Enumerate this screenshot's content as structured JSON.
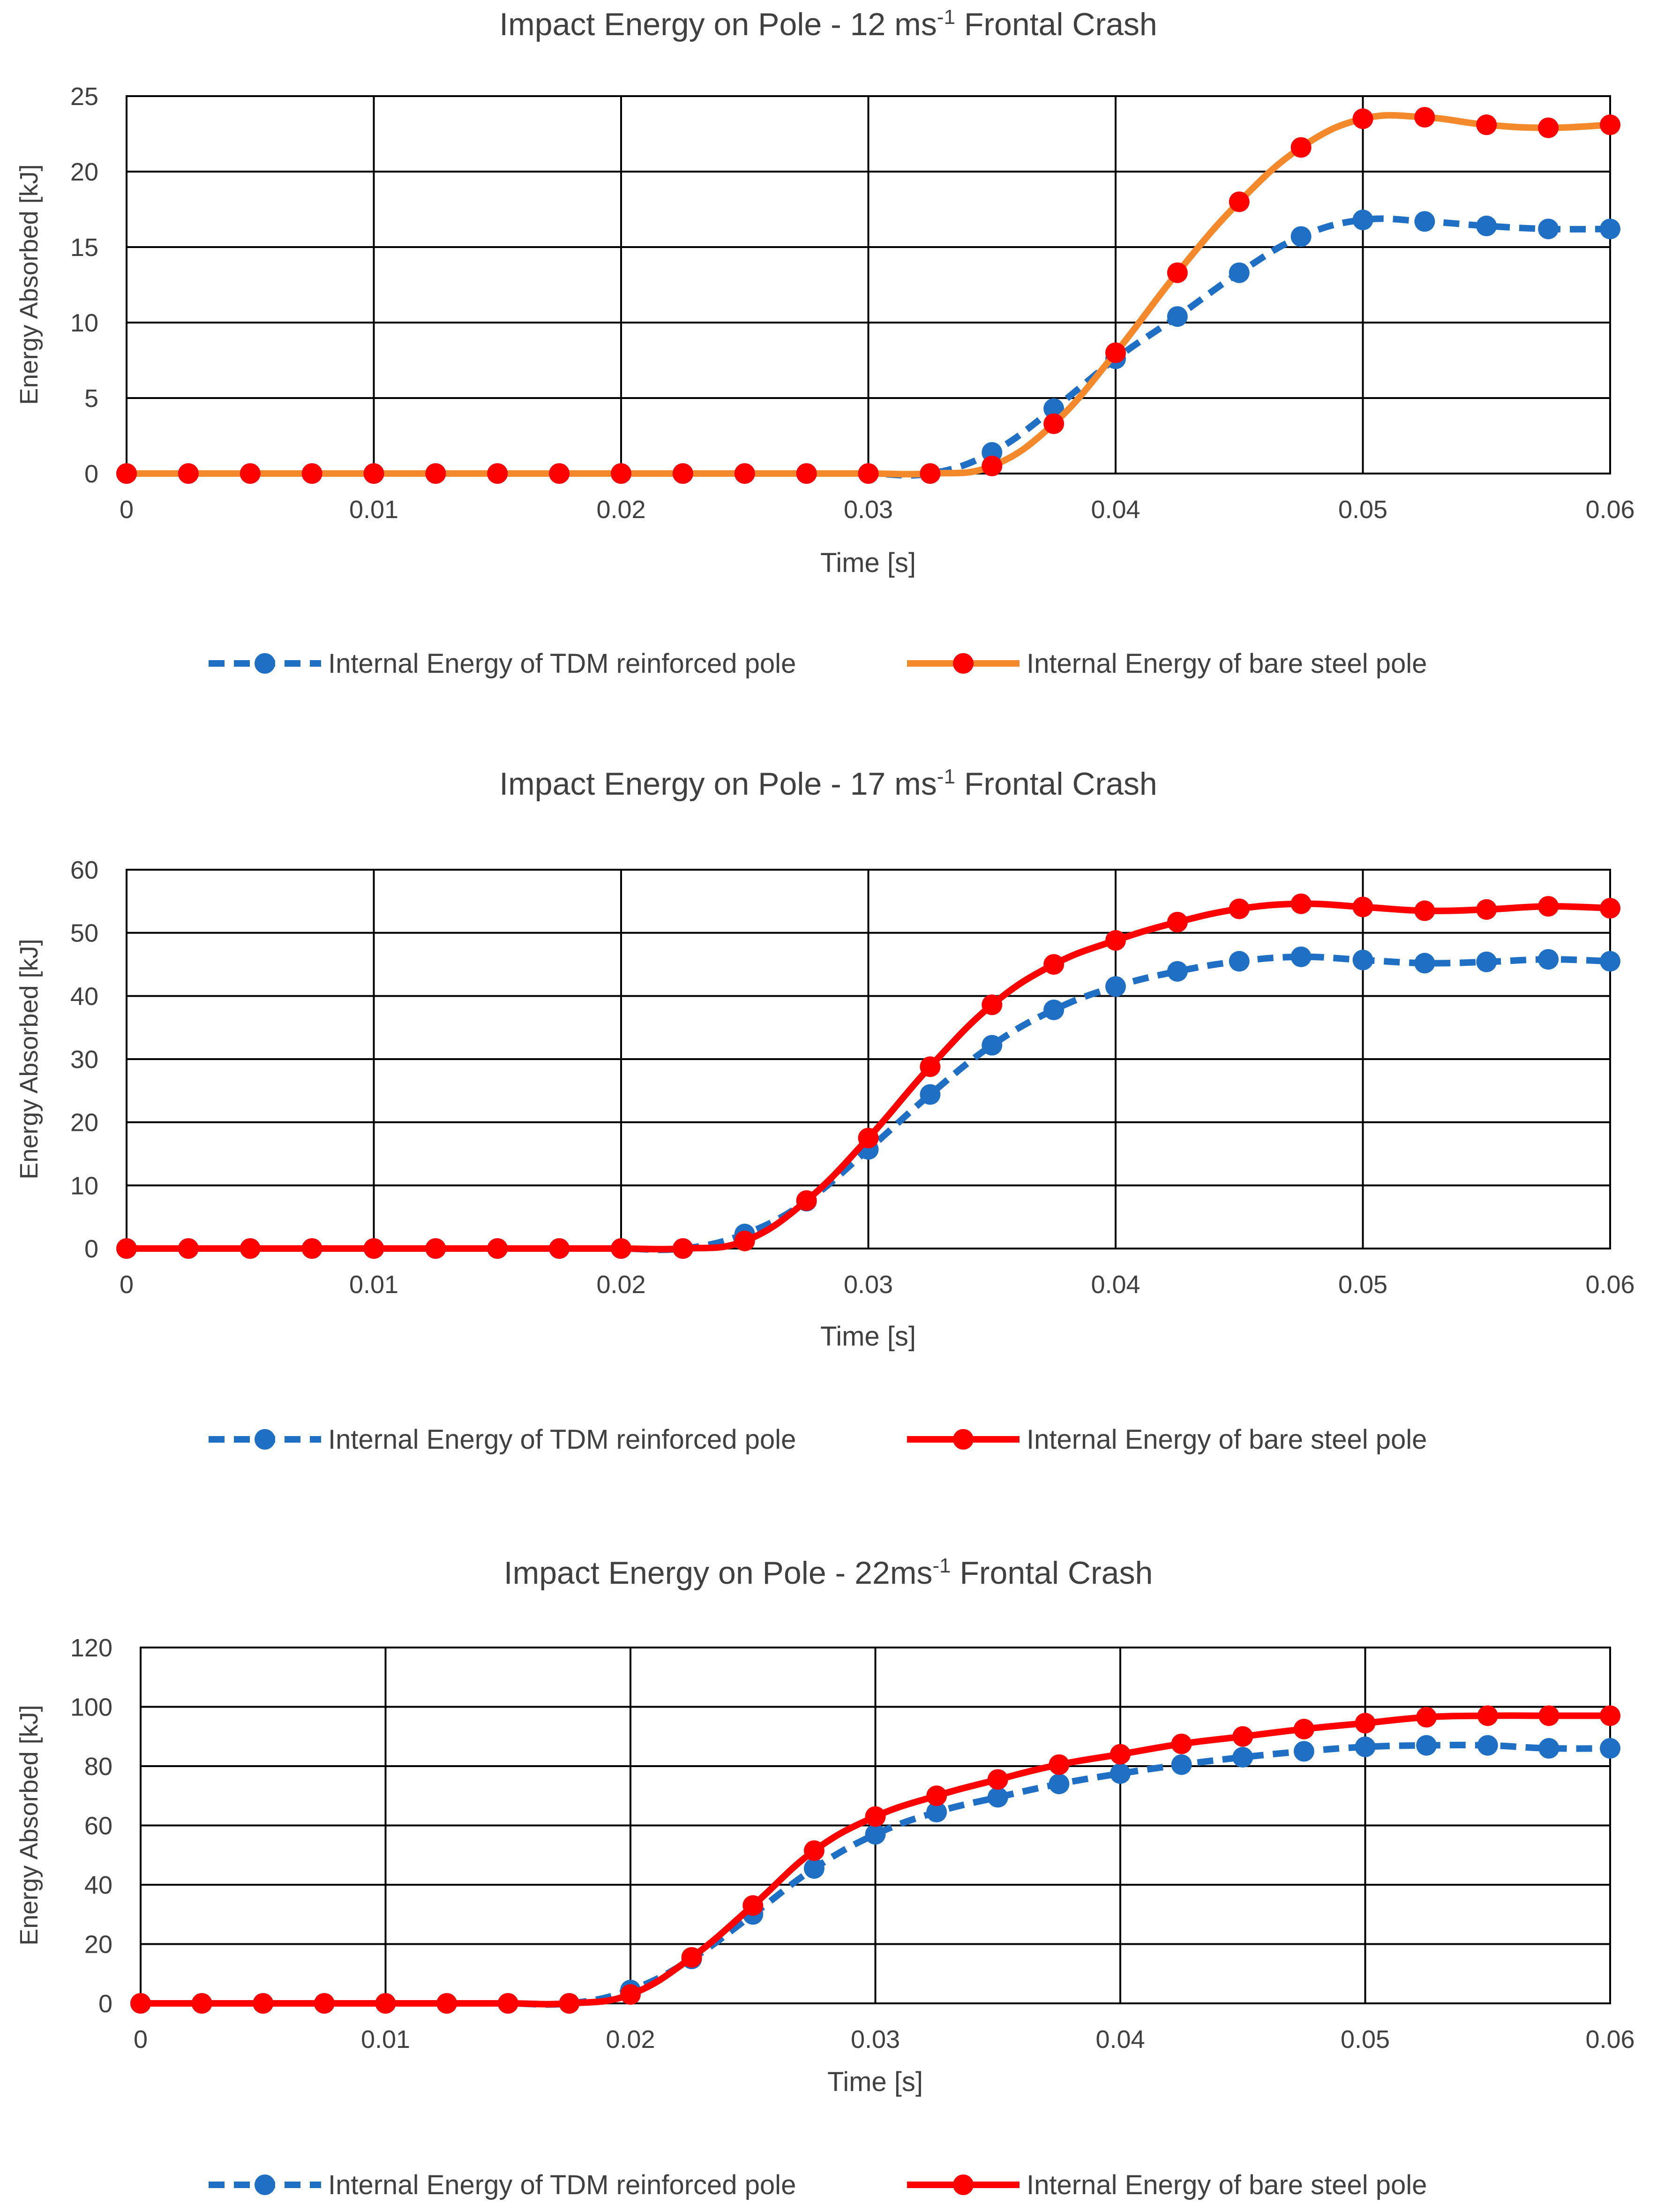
{
  "chart_data": [
    {
      "type": "line",
      "title_main": "Impact Energy on Pole - 12 ms",
      "title_sup": "-1",
      "title_end": " Frontal Crash",
      "xlabel": "Time [s]",
      "ylabel": "Energy Absorbed [kJ]",
      "xlim": [
        0,
        0.06
      ],
      "ylim": [
        0,
        25
      ],
      "grid": true,
      "x_ticks": [
        0,
        0.01,
        0.02,
        0.03,
        0.04,
        0.05,
        0.06
      ],
      "x_tick_labels": [
        "0",
        "0.01",
        "0.02",
        "0.03",
        "0.04",
        "0.05",
        "0.06"
      ],
      "y_ticks": [
        0,
        5,
        10,
        15,
        20,
        25
      ],
      "y_tick_labels": [
        "0",
        "5",
        "10",
        "15",
        "20",
        "25"
      ],
      "x": [
        0,
        0.0025,
        0.005,
        0.0075,
        0.01,
        0.0125,
        0.015,
        0.0175,
        0.02,
        0.0225,
        0.025,
        0.0275,
        0.03,
        0.0325,
        0.035,
        0.0375,
        0.04,
        0.0425,
        0.045,
        0.0475,
        0.05,
        0.0525,
        0.055,
        0.0575,
        0.06
      ],
      "legend_position": "bottom",
      "series": [
        {
          "name": "Internal Energy of TDM reinforced pole",
          "line_color": "#1F6FC5",
          "marker_color": "#1F6FC5",
          "dashed": true,
          "values": [
            0,
            0,
            0,
            0,
            0,
            0,
            0,
            0,
            0,
            0,
            0,
            0,
            0,
            0,
            1.4,
            4.3,
            7.6,
            10.4,
            13.3,
            15.7,
            16.8,
            16.7,
            16.4,
            16.2,
            16.2
          ]
        },
        {
          "name": "Internal Energy of bare steel pole",
          "line_color": "#F4892B",
          "marker_color": "#FF0000",
          "dashed": false,
          "values": [
            0,
            0,
            0,
            0,
            0,
            0,
            0,
            0,
            0,
            0,
            0,
            0,
            0,
            0,
            0.5,
            3.3,
            8.0,
            13.3,
            18.0,
            21.6,
            23.5,
            23.6,
            23.1,
            22.9,
            23.1
          ]
        }
      ]
    },
    {
      "type": "line",
      "title_main": "Impact Energy on Pole - 17 ms",
      "title_sup": "-1",
      "title_end": " Frontal Crash",
      "xlabel": "Time [s]",
      "ylabel": "Energy Absorbed [kJ]",
      "xlim": [
        0,
        0.06
      ],
      "ylim": [
        0,
        60
      ],
      "grid": true,
      "x_ticks": [
        0,
        0.01,
        0.02,
        0.03,
        0.04,
        0.05,
        0.06
      ],
      "x_tick_labels": [
        "0",
        "0.01",
        "0.02",
        "0.03",
        "0.04",
        "0.05",
        "0.06"
      ],
      "y_ticks": [
        0,
        10,
        20,
        30,
        40,
        50,
        60
      ],
      "y_tick_labels": [
        "0",
        "10",
        "20",
        "30",
        "40",
        "50",
        "60"
      ],
      "x": [
        0,
        0.0025,
        0.005,
        0.0075,
        0.01,
        0.0125,
        0.015,
        0.0175,
        0.02,
        0.0225,
        0.025,
        0.0275,
        0.03,
        0.0325,
        0.035,
        0.0375,
        0.04,
        0.0425,
        0.045,
        0.0475,
        0.05,
        0.0525,
        0.055,
        0.0575,
        0.06
      ],
      "legend_position": "bottom",
      "series": [
        {
          "name": "Internal Energy of TDM reinforced pole",
          "line_color": "#1F6FC5",
          "marker_color": "#1F6FC5",
          "dashed": true,
          "values": [
            0,
            0,
            0,
            0,
            0,
            0,
            0,
            0,
            0,
            0,
            2.3,
            7.5,
            15.7,
            24.4,
            32.2,
            37.8,
            41.5,
            43.9,
            45.5,
            46.2,
            45.7,
            45.2,
            45.4,
            45.8,
            45.5
          ]
        },
        {
          "name": "Internal Energy of bare steel pole",
          "line_color": "#FF0000",
          "marker_color": "#FF0000",
          "dashed": false,
          "values": [
            0,
            0,
            0,
            0,
            0,
            0,
            0,
            0,
            0,
            0,
            1.2,
            7.6,
            17.5,
            28.8,
            38.6,
            45.0,
            48.8,
            51.7,
            53.8,
            54.6,
            54.1,
            53.5,
            53.7,
            54.2,
            53.9
          ]
        }
      ]
    },
    {
      "type": "line",
      "title_main": "Impact Energy on Pole - 22ms",
      "title_sup": "-1",
      "title_end": " Frontal Crash",
      "xlabel": "Time [s]",
      "ylabel": "Energy Absorbed [kJ]",
      "xlim": [
        0,
        0.06
      ],
      "ylim": [
        0,
        120
      ],
      "grid": true,
      "x_ticks": [
        0,
        0.01,
        0.02,
        0.03,
        0.04,
        0.05,
        0.06
      ],
      "x_tick_labels": [
        "0",
        "0.01",
        "0.02",
        "0.03",
        "0.04",
        "0.05",
        "0.06"
      ],
      "y_ticks": [
        0,
        20,
        40,
        60,
        80,
        100,
        120
      ],
      "y_tick_labels": [
        "0",
        "20",
        "40",
        "60",
        "80",
        "100",
        "120"
      ],
      "x": [
        0,
        0.0025,
        0.005,
        0.0075,
        0.01,
        0.0125,
        0.015,
        0.0175,
        0.02,
        0.0225,
        0.025,
        0.0275,
        0.03,
        0.0325,
        0.035,
        0.0375,
        0.04,
        0.0425,
        0.045,
        0.0475,
        0.05,
        0.0525,
        0.055,
        0.0575,
        0.06
      ],
      "legend_position": "bottom",
      "series": [
        {
          "name": "Internal Energy of TDM reinforced pole",
          "line_color": "#1F6FC5",
          "marker_color": "#1F6FC5",
          "dashed": true,
          "values": [
            0,
            0,
            0,
            0,
            0,
            0,
            0,
            0,
            4.5,
            15.0,
            30.0,
            45.5,
            57.0,
            64.5,
            69.5,
            74.0,
            77.5,
            80.5,
            83.0,
            85.0,
            86.5,
            87.0,
            87.0,
            86.0,
            86.0
          ]
        },
        {
          "name": "Internal Energy of bare steel pole",
          "line_color": "#FF0000",
          "marker_color": "#FF0000",
          "dashed": false,
          "values": [
            0,
            0,
            0,
            0,
            0,
            0,
            0,
            0,
            3.0,
            15.5,
            33.0,
            51.5,
            63.0,
            70.0,
            75.5,
            80.5,
            84.0,
            87.5,
            90.0,
            92.5,
            94.5,
            96.5,
            97.0,
            97.0,
            97.0
          ]
        }
      ]
    }
  ]
}
